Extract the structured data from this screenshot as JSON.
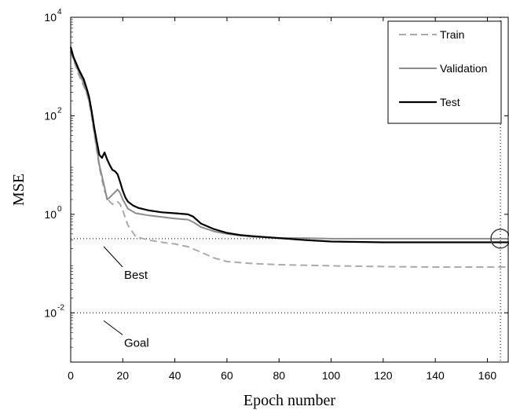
{
  "chart_data": {
    "type": "line",
    "xlabel": "Epoch number",
    "ylabel": "MSE",
    "xlim": [
      0,
      168
    ],
    "ylim": [
      0.001,
      10000
    ],
    "yscale": "log",
    "x_ticks": [
      0,
      20,
      40,
      60,
      80,
      100,
      120,
      140,
      160
    ],
    "y_ticks": [
      {
        "value": 0.01,
        "base": "10",
        "exp": "-2"
      },
      {
        "value": 1,
        "base": "10",
        "exp": "0"
      },
      {
        "value": 100,
        "base": "10",
        "exp": "2"
      },
      {
        "value": 10000,
        "base": "10",
        "exp": "4"
      }
    ],
    "legend": {
      "position": "top-right",
      "entries": [
        {
          "label": "Train",
          "color": "#aaaaaa",
          "style": "dashed"
        },
        {
          "label": "Validation",
          "color": "#8c8c8c",
          "style": "solid"
        },
        {
          "label": "Test",
          "color": "#000000",
          "style": "solid"
        }
      ]
    },
    "series": [
      {
        "name": "Train",
        "color": "#aaaaaa",
        "dash": true,
        "points": [
          [
            0,
            2000
          ],
          [
            1,
            1400
          ],
          [
            2,
            1000
          ],
          [
            3,
            700
          ],
          [
            4,
            520
          ],
          [
            5,
            400
          ],
          [
            6,
            300
          ],
          [
            7,
            200
          ],
          [
            8,
            100
          ],
          [
            9,
            45
          ],
          [
            10,
            20
          ],
          [
            11,
            9
          ],
          [
            12,
            5
          ],
          [
            13,
            3
          ],
          [
            14,
            2.2
          ],
          [
            15,
            1.8
          ],
          [
            16,
            1.6
          ],
          [
            17,
            1.7
          ],
          [
            18,
            1.8
          ],
          [
            19,
            1.6
          ],
          [
            20,
            1.2
          ],
          [
            22,
            0.6
          ],
          [
            25,
            0.35
          ],
          [
            30,
            0.3
          ],
          [
            35,
            0.27
          ],
          [
            40,
            0.25
          ],
          [
            45,
            0.22
          ],
          [
            50,
            0.17
          ],
          [
            55,
            0.13
          ],
          [
            60,
            0.11
          ],
          [
            70,
            0.1
          ],
          [
            80,
            0.095
          ],
          [
            100,
            0.09
          ],
          [
            120,
            0.087
          ],
          [
            140,
            0.085
          ],
          [
            168,
            0.085
          ]
        ]
      },
      {
        "name": "Validation",
        "color": "#8c8c8c",
        "dash": false,
        "points": [
          [
            0,
            2200
          ],
          [
            1,
            1500
          ],
          [
            2,
            1100
          ],
          [
            3,
            800
          ],
          [
            4,
            600
          ],
          [
            5,
            450
          ],
          [
            6,
            320
          ],
          [
            7,
            210
          ],
          [
            8,
            110
          ],
          [
            9,
            50
          ],
          [
            10,
            22
          ],
          [
            11,
            10
          ],
          [
            12,
            6
          ],
          [
            13,
            3.5
          ],
          [
            14,
            2
          ],
          [
            15,
            2.2
          ],
          [
            16,
            2.5
          ],
          [
            17,
            2.8
          ],
          [
            18,
            3.2
          ],
          [
            19,
            2.7
          ],
          [
            20,
            2
          ],
          [
            22,
            1.3
          ],
          [
            25,
            1.05
          ],
          [
            30,
            0.95
          ],
          [
            35,
            0.88
          ],
          [
            40,
            0.82
          ],
          [
            45,
            0.78
          ],
          [
            47,
            0.7
          ],
          [
            50,
            0.55
          ],
          [
            55,
            0.45
          ],
          [
            60,
            0.4
          ],
          [
            65,
            0.37
          ],
          [
            70,
            0.35
          ],
          [
            80,
            0.33
          ],
          [
            90,
            0.33
          ],
          [
            100,
            0.32
          ],
          [
            120,
            0.32
          ],
          [
            140,
            0.32
          ],
          [
            168,
            0.32
          ]
        ]
      },
      {
        "name": "Test",
        "color": "#000000",
        "dash": false,
        "points": [
          [
            0,
            2500
          ],
          [
            1,
            1600
          ],
          [
            2,
            1200
          ],
          [
            3,
            900
          ],
          [
            4,
            700
          ],
          [
            5,
            550
          ],
          [
            6,
            380
          ],
          [
            7,
            250
          ],
          [
            8,
            130
          ],
          [
            9,
            60
          ],
          [
            10,
            30
          ],
          [
            11,
            16
          ],
          [
            12,
            14
          ],
          [
            13,
            18
          ],
          [
            14,
            13
          ],
          [
            15,
            10
          ],
          [
            16,
            8
          ],
          [
            17,
            7.5
          ],
          [
            18,
            6.5
          ],
          [
            19,
            4.5
          ],
          [
            20,
            3
          ],
          [
            21,
            2.2
          ],
          [
            22,
            1.8
          ],
          [
            24,
            1.5
          ],
          [
            26,
            1.35
          ],
          [
            30,
            1.2
          ],
          [
            35,
            1.1
          ],
          [
            40,
            1.05
          ],
          [
            45,
            1.0
          ],
          [
            47,
            0.9
          ],
          [
            50,
            0.65
          ],
          [
            55,
            0.5
          ],
          [
            60,
            0.42
          ],
          [
            65,
            0.38
          ],
          [
            70,
            0.36
          ],
          [
            80,
            0.33
          ],
          [
            90,
            0.3
          ],
          [
            100,
            0.28
          ],
          [
            120,
            0.27
          ],
          [
            140,
            0.27
          ],
          [
            168,
            0.27
          ]
        ]
      }
    ],
    "reference_lines": [
      {
        "label": "Best",
        "y": 0.32,
        "style": "dotted"
      },
      {
        "label": "Goal",
        "y": 0.01,
        "style": "dotted"
      }
    ],
    "best_epoch": 165,
    "best_marker": {
      "x": 165,
      "y": 0.32
    }
  }
}
